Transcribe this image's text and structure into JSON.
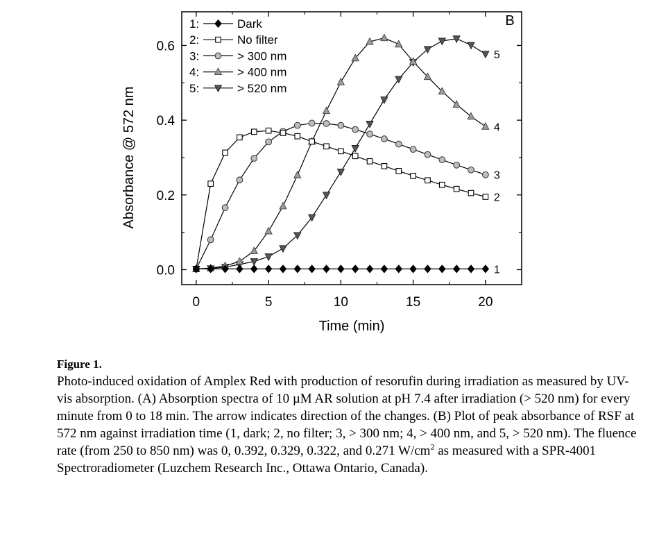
{
  "chart_data": {
    "type": "line",
    "panel_label": "B",
    "xlabel": "Time (min)",
    "ylabel": "Absorbance @ 572 nm",
    "xlim": [
      -1,
      22.5
    ],
    "ylim": [
      -0.04,
      0.69
    ],
    "xticks": [
      0,
      5,
      10,
      15,
      20
    ],
    "yticks": [
      0.0,
      0.2,
      0.4,
      0.6
    ],
    "xtick_labels": [
      "0",
      "5",
      "10",
      "15",
      "20"
    ],
    "ytick_labels": [
      "0.0",
      "0.2",
      "0.4",
      "0.6"
    ],
    "legend_position": "top-left",
    "x": [
      0,
      1,
      2,
      3,
      4,
      5,
      6,
      7,
      8,
      9,
      10,
      11,
      12,
      13,
      14,
      15,
      16,
      17,
      18,
      19,
      20
    ],
    "series": [
      {
        "id": "1",
        "name": "Dark",
        "legend_number": "1:",
        "end_label": "1",
        "marker": "diamond-filled",
        "color": "#000000",
        "values": [
          0.002,
          0.002,
          0.002,
          0.002,
          0.002,
          0.002,
          0.002,
          0.002,
          0.002,
          0.002,
          0.002,
          0.002,
          0.002,
          0.002,
          0.002,
          0.002,
          0.002,
          0.002,
          0.002,
          0.002,
          0.002
        ]
      },
      {
        "id": "2",
        "name": "No filter",
        "legend_number": "2:",
        "end_label": "2",
        "marker": "square-open",
        "color": "#ffffff",
        "values": [
          0.002,
          0.23,
          0.313,
          0.354,
          0.369,
          0.372,
          0.366,
          0.357,
          0.343,
          0.33,
          0.317,
          0.304,
          0.29,
          0.277,
          0.264,
          0.251,
          0.239,
          0.227,
          0.216,
          0.205,
          0.195
        ]
      },
      {
        "id": "3",
        "name": "> 300 nm",
        "legend_number": "3:",
        "end_label": "3",
        "marker": "circle-gray",
        "color": "#bdbdbd",
        "values": [
          0.002,
          0.08,
          0.166,
          0.24,
          0.298,
          0.342,
          0.37,
          0.386,
          0.392,
          0.391,
          0.386,
          0.375,
          0.363,
          0.35,
          0.336,
          0.322,
          0.308,
          0.294,
          0.28,
          0.267,
          0.254
        ]
      },
      {
        "id": "4",
        "name": "> 400 nm",
        "legend_number": "4:",
        "end_label": "4",
        "marker": "triangle-up-gray",
        "color": "#9a9a9a",
        "values": [
          0.002,
          0.004,
          0.01,
          0.022,
          0.05,
          0.103,
          0.17,
          0.253,
          0.343,
          0.425,
          0.502,
          0.566,
          0.61,
          0.62,
          0.603,
          0.557,
          0.516,
          0.477,
          0.442,
          0.41,
          0.383
        ]
      },
      {
        "id": "5",
        "name": "> 520 nm",
        "legend_number": "5:",
        "end_label": "5",
        "marker": "triangle-down-dark",
        "color": "#555555",
        "values": [
          0.002,
          0.003,
          0.007,
          0.014,
          0.022,
          0.035,
          0.057,
          0.092,
          0.14,
          0.2,
          0.262,
          0.325,
          0.39,
          0.455,
          0.51,
          0.555,
          0.59,
          0.612,
          0.618,
          0.601,
          0.577
        ]
      }
    ]
  },
  "caption": {
    "title": "Figure 1.",
    "text_before_sup": "Photo-induced oxidation of Amplex Red with production of resorufin during irradiation as measured by UV-vis absorption. (A) Absorption spectra of 10 µM AR solution at pH 7.4 after irradiation (> 520 nm) for every minute from 0 to 18 min. The arrow indicates direction of the changes. (B) Plot of peak absorbance of RSF at 572 nm against irradiation time (1, dark; 2, no filter; 3, > 300 nm; 4, > 400 nm, and 5, > 520 nm). The fluence rate (from 250 to 850 nm) was 0, 0.392, 0.329, 0.322, and 0.271 W/cm",
    "sup": "2",
    "text_after_sup": " as measured with a SPR-4001 Spectroradiometer (Luzchem Research Inc., Ottawa Ontario, Canada)."
  }
}
